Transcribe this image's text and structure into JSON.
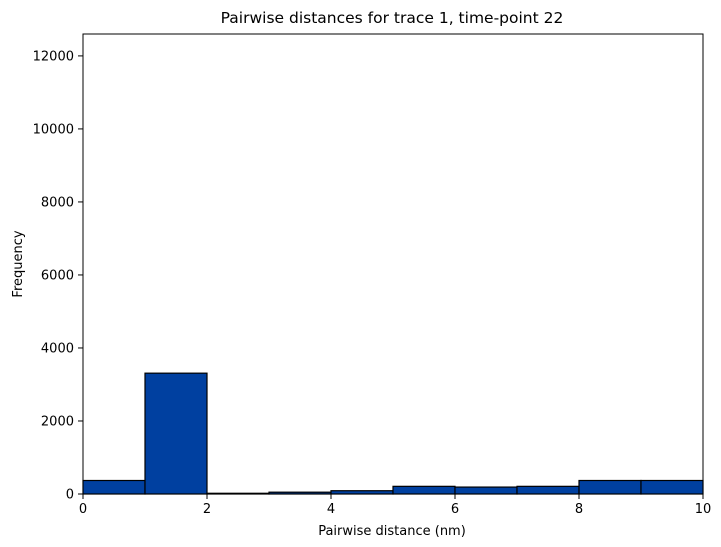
{
  "chart_data": {
    "type": "bar",
    "title": "Pairwise distances for trace 1, time-point 22",
    "xlabel": "Pairwise distance (nm)",
    "ylabel": "Frequency",
    "xlim": [
      0,
      10
    ],
    "ylim": [
      0,
      12600
    ],
    "xticks": [
      0,
      2,
      4,
      6,
      8,
      10
    ],
    "yticks": [
      0,
      2000,
      4000,
      6000,
      8000,
      10000,
      12000
    ],
    "bins": [
      {
        "x0": 0,
        "x1": 1,
        "value": 370
      },
      {
        "x0": 1,
        "x1": 2,
        "value": 3310
      },
      {
        "x0": 2,
        "x1": 3,
        "value": 20
      },
      {
        "x0": 3,
        "x1": 4,
        "value": 50
      },
      {
        "x0": 4,
        "x1": 5,
        "value": 90
      },
      {
        "x0": 5,
        "x1": 6,
        "value": 210
      },
      {
        "x0": 6,
        "x1": 7,
        "value": 190
      },
      {
        "x0": 7,
        "x1": 8,
        "value": 210
      },
      {
        "x0": 8,
        "x1": 9,
        "value": 370
      },
      {
        "x0": 9,
        "x1": 10,
        "value": 370
      }
    ],
    "bar_color": "#0040a0",
    "edge_color": "#000000",
    "grid": false,
    "legend": "none"
  }
}
